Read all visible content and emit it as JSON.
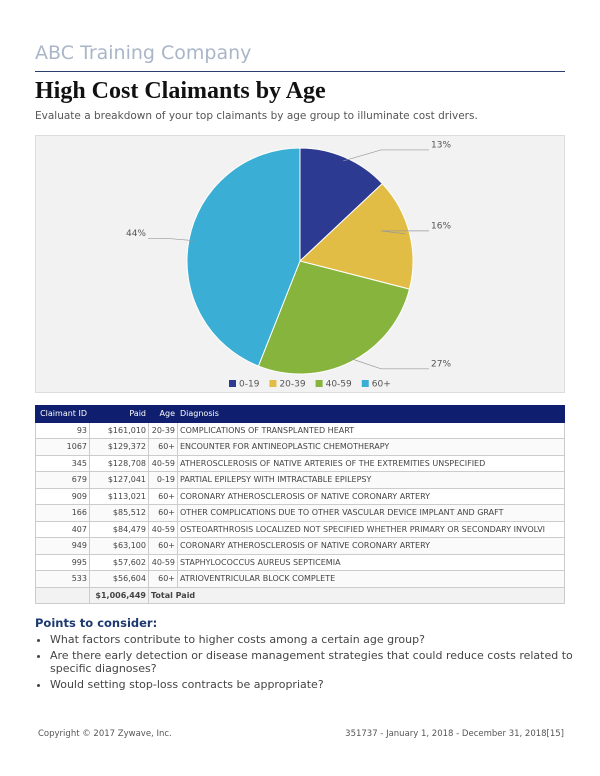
{
  "header": {
    "company": "ABC Training Company",
    "title": "High Cost Claimants by Age",
    "subtitle": "Evaluate a breakdown of your top claimants by age group to illuminate cost drivers."
  },
  "chart_data": {
    "type": "pie",
    "categories": [
      "0-19",
      "20-39",
      "40-59",
      "60+"
    ],
    "values": [
      13,
      16,
      27,
      44
    ],
    "value_labels": [
      "13%",
      "16%",
      "27%",
      "44%"
    ],
    "colors": [
      "#2d3a92",
      "#e2bd45",
      "#86b43c",
      "#3aaed4"
    ],
    "legend": "bottom"
  },
  "table": {
    "headers": [
      "Claimant ID",
      "Paid",
      "Age",
      "Diagnosis"
    ],
    "rows": [
      [
        "93",
        "$161,010",
        "20-39",
        "COMPLICATIONS OF TRANSPLANTED HEART"
      ],
      [
        "1067",
        "$129,372",
        "60+",
        "ENCOUNTER FOR ANTINEOPLASTIC CHEMOTHERAPY"
      ],
      [
        "345",
        "$128,708",
        "40-59",
        "ATHEROSCLEROSIS OF NATIVE ARTERIES OF THE EXTREMITIES UNSPECIFIED"
      ],
      [
        "679",
        "$127,041",
        "0-19",
        "PARTIAL EPILEPSY WITH IMTRACTABLE EPILEPSY"
      ],
      [
        "909",
        "$113,021",
        "60+",
        "CORONARY ATHEROSCLEROSIS OF NATIVE CORONARY ARTERY"
      ],
      [
        "166",
        "$85,512",
        "60+",
        "OTHER COMPLICATIONS DUE TO OTHER VASCULAR DEVICE IMPLANT AND GRAFT"
      ],
      [
        "407",
        "$84,479",
        "40-59",
        "OSTEOARTHROSIS LOCALIZED NOT SPECIFIED WHETHER PRIMARY OR SECONDARY INVOLVI"
      ],
      [
        "949",
        "$63,100",
        "60+",
        "CORONARY ATHEROSCLEROSIS OF NATIVE CORONARY ARTERY"
      ],
      [
        "995",
        "$57,602",
        "40-59",
        "STAPHYLOCOCCUS AUREUS SEPTICEMIA"
      ],
      [
        "533",
        "$56,604",
        "60+",
        "ATRIOVENTRICULAR BLOCK COMPLETE"
      ]
    ],
    "total": {
      "paid": "$1,006,449",
      "label": "Total Paid"
    }
  },
  "points": {
    "heading": "Points to consider:",
    "items": [
      "What factors contribute to higher costs among a certain age group?",
      "Are there early detection or disease management strategies that could reduce costs related to specific diagnoses?",
      "Would setting stop-loss contracts be appropriate?"
    ]
  },
  "footer": {
    "copyright": "Copyright © 2017 Zywave, Inc.",
    "info": "351737 - January 1, 2018 - December 31, 2018[15]"
  }
}
